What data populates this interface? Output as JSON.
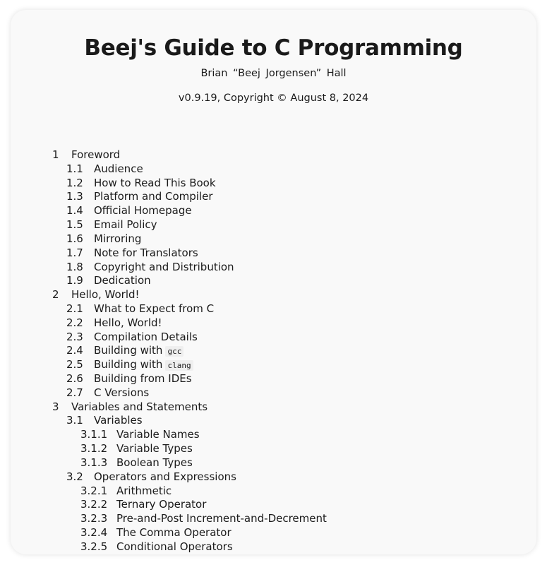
{
  "document": {
    "title": "Beej's Guide to C Programming",
    "author": "Brian “Beej Jorgensen” Hall",
    "version": "v0.9.19, Copyright © August 8, 2024"
  },
  "toc": [
    {
      "level": 1,
      "num": "1",
      "text": "Foreword"
    },
    {
      "level": 2,
      "num": "1.1",
      "text": "Audience"
    },
    {
      "level": 2,
      "num": "1.2",
      "text": "How to Read This Book"
    },
    {
      "level": 2,
      "num": "1.3",
      "text": "Platform and Compiler"
    },
    {
      "level": 2,
      "num": "1.4",
      "text": "Official Homepage"
    },
    {
      "level": 2,
      "num": "1.5",
      "text": "Email Policy"
    },
    {
      "level": 2,
      "num": "1.6",
      "text": "Mirroring"
    },
    {
      "level": 2,
      "num": "1.7",
      "text": "Note for Translators"
    },
    {
      "level": 2,
      "num": "1.8",
      "text": "Copyright and Distribution"
    },
    {
      "level": 2,
      "num": "1.9",
      "text": "Dedication"
    },
    {
      "level": 1,
      "num": "2",
      "text": "Hello, World!"
    },
    {
      "level": 2,
      "num": "2.1",
      "text": "What to Expect from C"
    },
    {
      "level": 2,
      "num": "2.2",
      "text": "Hello, World!"
    },
    {
      "level": 2,
      "num": "2.3",
      "text": "Compilation Details"
    },
    {
      "level": 2,
      "num": "2.4",
      "text": "Building with",
      "code": "gcc"
    },
    {
      "level": 2,
      "num": "2.5",
      "text": "Building with",
      "code": "clang"
    },
    {
      "level": 2,
      "num": "2.6",
      "text": "Building from IDEs"
    },
    {
      "level": 2,
      "num": "2.7",
      "text": "C Versions"
    },
    {
      "level": 1,
      "num": "3",
      "text": "Variables and Statements"
    },
    {
      "level": 2,
      "num": "3.1",
      "text": "Variables"
    },
    {
      "level": 3,
      "num": "3.1.1",
      "text": "Variable Names"
    },
    {
      "level": 3,
      "num": "3.1.2",
      "text": "Variable Types"
    },
    {
      "level": 3,
      "num": "3.1.3",
      "text": "Boolean Types"
    },
    {
      "level": 2,
      "num": "3.2",
      "text": "Operators and Expressions"
    },
    {
      "level": 3,
      "num": "3.2.1",
      "text": "Arithmetic"
    },
    {
      "level": 3,
      "num": "3.2.2",
      "text": "Ternary Operator"
    },
    {
      "level": 3,
      "num": "3.2.3",
      "text": "Pre-and-Post Increment-and-Decrement"
    },
    {
      "level": 3,
      "num": "3.2.4",
      "text": "The Comma Operator"
    },
    {
      "level": 3,
      "num": "3.2.5",
      "text": "Conditional Operators"
    }
  ]
}
